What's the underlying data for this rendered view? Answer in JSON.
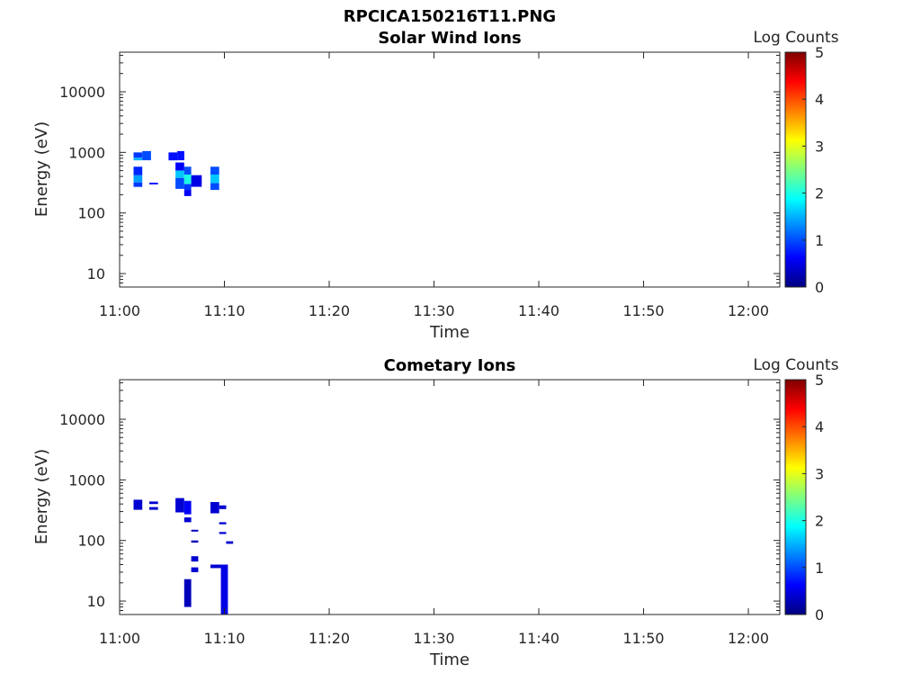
{
  "figure_title": "RPCICA150216T11.PNG",
  "colors": {
    "colormap": [
      "#00007f",
      "#0000ff",
      "#007fff",
      "#00ffff",
      "#7fff7f",
      "#ffff00",
      "#ff7f00",
      "#ff0000",
      "#7f0000"
    ]
  },
  "chart_data": [
    {
      "type": "heatmap",
      "title": "Solar Wind Ions",
      "xlabel": "Time",
      "ylabel": "Energy (eV)",
      "y_scale": "log",
      "ylim": [
        6,
        45000
      ],
      "xlim": [
        "11:00",
        "12:03"
      ],
      "x_ticks": [
        "11:00",
        "11:10",
        "11:20",
        "11:30",
        "11:40",
        "11:50",
        "12:00"
      ],
      "y_ticks": [
        "10",
        "100",
        "1000",
        "10000"
      ],
      "colorbar": {
        "label": "Log Counts",
        "min": 0,
        "max": 5,
        "ticks": [
          "0",
          "1",
          "2",
          "3",
          "4",
          "5"
        ]
      },
      "cells": [
        {
          "t0": "11:01:20",
          "t1": "11:02:10",
          "e0": 740,
          "e1": 820,
          "v": 1.5
        },
        {
          "t0": "11:02:10",
          "t1": "11:03:00",
          "e0": 740,
          "e1": 1050,
          "v": 1.0
        },
        {
          "t0": "11:01:20",
          "t1": "11:02:10",
          "e0": 820,
          "e1": 1000,
          "v": 0.9
        },
        {
          "t0": "11:01:20",
          "t1": "11:02:10",
          "e0": 270,
          "e1": 320,
          "v": 0.9
        },
        {
          "t0": "11:01:20",
          "t1": "11:02:10",
          "e0": 320,
          "e1": 420,
          "v": 1.4
        },
        {
          "t0": "11:01:20",
          "t1": "11:02:10",
          "e0": 420,
          "e1": 580,
          "v": 0.8
        },
        {
          "t0": "11:02:50",
          "t1": "11:03:40",
          "e0": 295,
          "e1": 315,
          "v": 0.7
        },
        {
          "t0": "11:04:40",
          "t1": "11:05:30",
          "e0": 740,
          "e1": 1000,
          "v": 0.7
        },
        {
          "t0": "11:05:30",
          "t1": "11:06:10",
          "e0": 740,
          "e1": 1050,
          "v": 0.7
        },
        {
          "t0": "11:05:20",
          "t1": "11:06:10",
          "e0": 500,
          "e1": 680,
          "v": 0.6
        },
        {
          "t0": "11:05:20",
          "t1": "11:06:10",
          "e0": 380,
          "e1": 500,
          "v": 1.6
        },
        {
          "t0": "11:05:20",
          "t1": "11:06:10",
          "e0": 250,
          "e1": 380,
          "v": 1.0
        },
        {
          "t0": "11:06:10",
          "t1": "11:06:50",
          "e0": 430,
          "e1": 580,
          "v": 1.0
        },
        {
          "t0": "11:06:10",
          "t1": "11:06:50",
          "e0": 300,
          "e1": 430,
          "v": 2.0
        },
        {
          "t0": "11:06:10",
          "t1": "11:06:50",
          "e0": 240,
          "e1": 300,
          "v": 0.9
        },
        {
          "t0": "11:06:10",
          "t1": "11:06:50",
          "e0": 190,
          "e1": 240,
          "v": 0.6
        },
        {
          "t0": "11:06:50",
          "t1": "11:07:50",
          "e0": 270,
          "e1": 420,
          "v": 0.5
        },
        {
          "t0": "11:08:40",
          "t1": "11:09:30",
          "e0": 430,
          "e1": 580,
          "v": 1.0
        },
        {
          "t0": "11:08:40",
          "t1": "11:09:30",
          "e0": 310,
          "e1": 430,
          "v": 1.6
        },
        {
          "t0": "11:08:40",
          "t1": "11:09:30",
          "e0": 240,
          "e1": 310,
          "v": 1.0
        }
      ]
    },
    {
      "type": "heatmap",
      "title": "Cometary Ions",
      "xlabel": "Time",
      "ylabel": "Energy (eV)",
      "y_scale": "log",
      "ylim": [
        6,
        45000
      ],
      "xlim": [
        "11:00",
        "12:03"
      ],
      "x_ticks": [
        "11:00",
        "11:10",
        "11:20",
        "11:30",
        "11:40",
        "11:50",
        "12:00"
      ],
      "y_ticks": [
        "10",
        "100",
        "1000",
        "10000"
      ],
      "colorbar": {
        "label": "Log Counts",
        "min": 0,
        "max": 5,
        "ticks": [
          "0",
          "1",
          "2",
          "3",
          "4",
          "5"
        ]
      },
      "cells": [
        {
          "t0": "11:01:20",
          "t1": "11:02:10",
          "e0": 320,
          "e1": 470,
          "v": 0.4
        },
        {
          "t0": "11:02:50",
          "t1": "11:03:40",
          "e0": 400,
          "e1": 440,
          "v": 0.4
        },
        {
          "t0": "11:02:50",
          "t1": "11:03:40",
          "e0": 320,
          "e1": 355,
          "v": 0.4
        },
        {
          "t0": "11:05:20",
          "t1": "11:06:10",
          "e0": 290,
          "e1": 500,
          "v": 0.4
        },
        {
          "t0": "11:06:10",
          "t1": "11:06:50",
          "e0": 270,
          "e1": 450,
          "v": 0.6
        },
        {
          "t0": "11:06:10",
          "t1": "11:06:50",
          "e0": 200,
          "e1": 240,
          "v": 0.4
        },
        {
          "t0": "11:06:50",
          "t1": "11:07:30",
          "e0": 140,
          "e1": 150,
          "v": 0.3
        },
        {
          "t0": "11:06:50",
          "t1": "11:07:30",
          "e0": 92,
          "e1": 100,
          "v": 0.3
        },
        {
          "t0": "11:06:50",
          "t1": "11:07:30",
          "e0": 45,
          "e1": 55,
          "v": 0.4
        },
        {
          "t0": "11:06:50",
          "t1": "11:07:30",
          "e0": 30,
          "e1": 36,
          "v": 0.4
        },
        {
          "t0": "11:06:10",
          "t1": "11:06:50",
          "e0": 8,
          "e1": 23,
          "v": 0.3
        },
        {
          "t0": "11:08:40",
          "t1": "11:09:30",
          "e0": 280,
          "e1": 430,
          "v": 0.4
        },
        {
          "t0": "11:09:30",
          "t1": "11:10:10",
          "e0": 330,
          "e1": 380,
          "v": 0.4
        },
        {
          "t0": "11:09:30",
          "t1": "11:10:10",
          "e0": 185,
          "e1": 200,
          "v": 0.4
        },
        {
          "t0": "11:09:30",
          "t1": "11:10:10",
          "e0": 128,
          "e1": 138,
          "v": 0.4
        },
        {
          "t0": "11:10:10",
          "t1": "11:10:50",
          "e0": 88,
          "e1": 97,
          "v": 0.4
        },
        {
          "t0": "11:08:40",
          "t1": "11:09:40",
          "e0": 35,
          "e1": 40,
          "v": 0.4
        },
        {
          "t0": "11:09:40",
          "t1": "11:10:20",
          "e0": 6,
          "e1": 40,
          "v": 0.5
        }
      ]
    }
  ]
}
